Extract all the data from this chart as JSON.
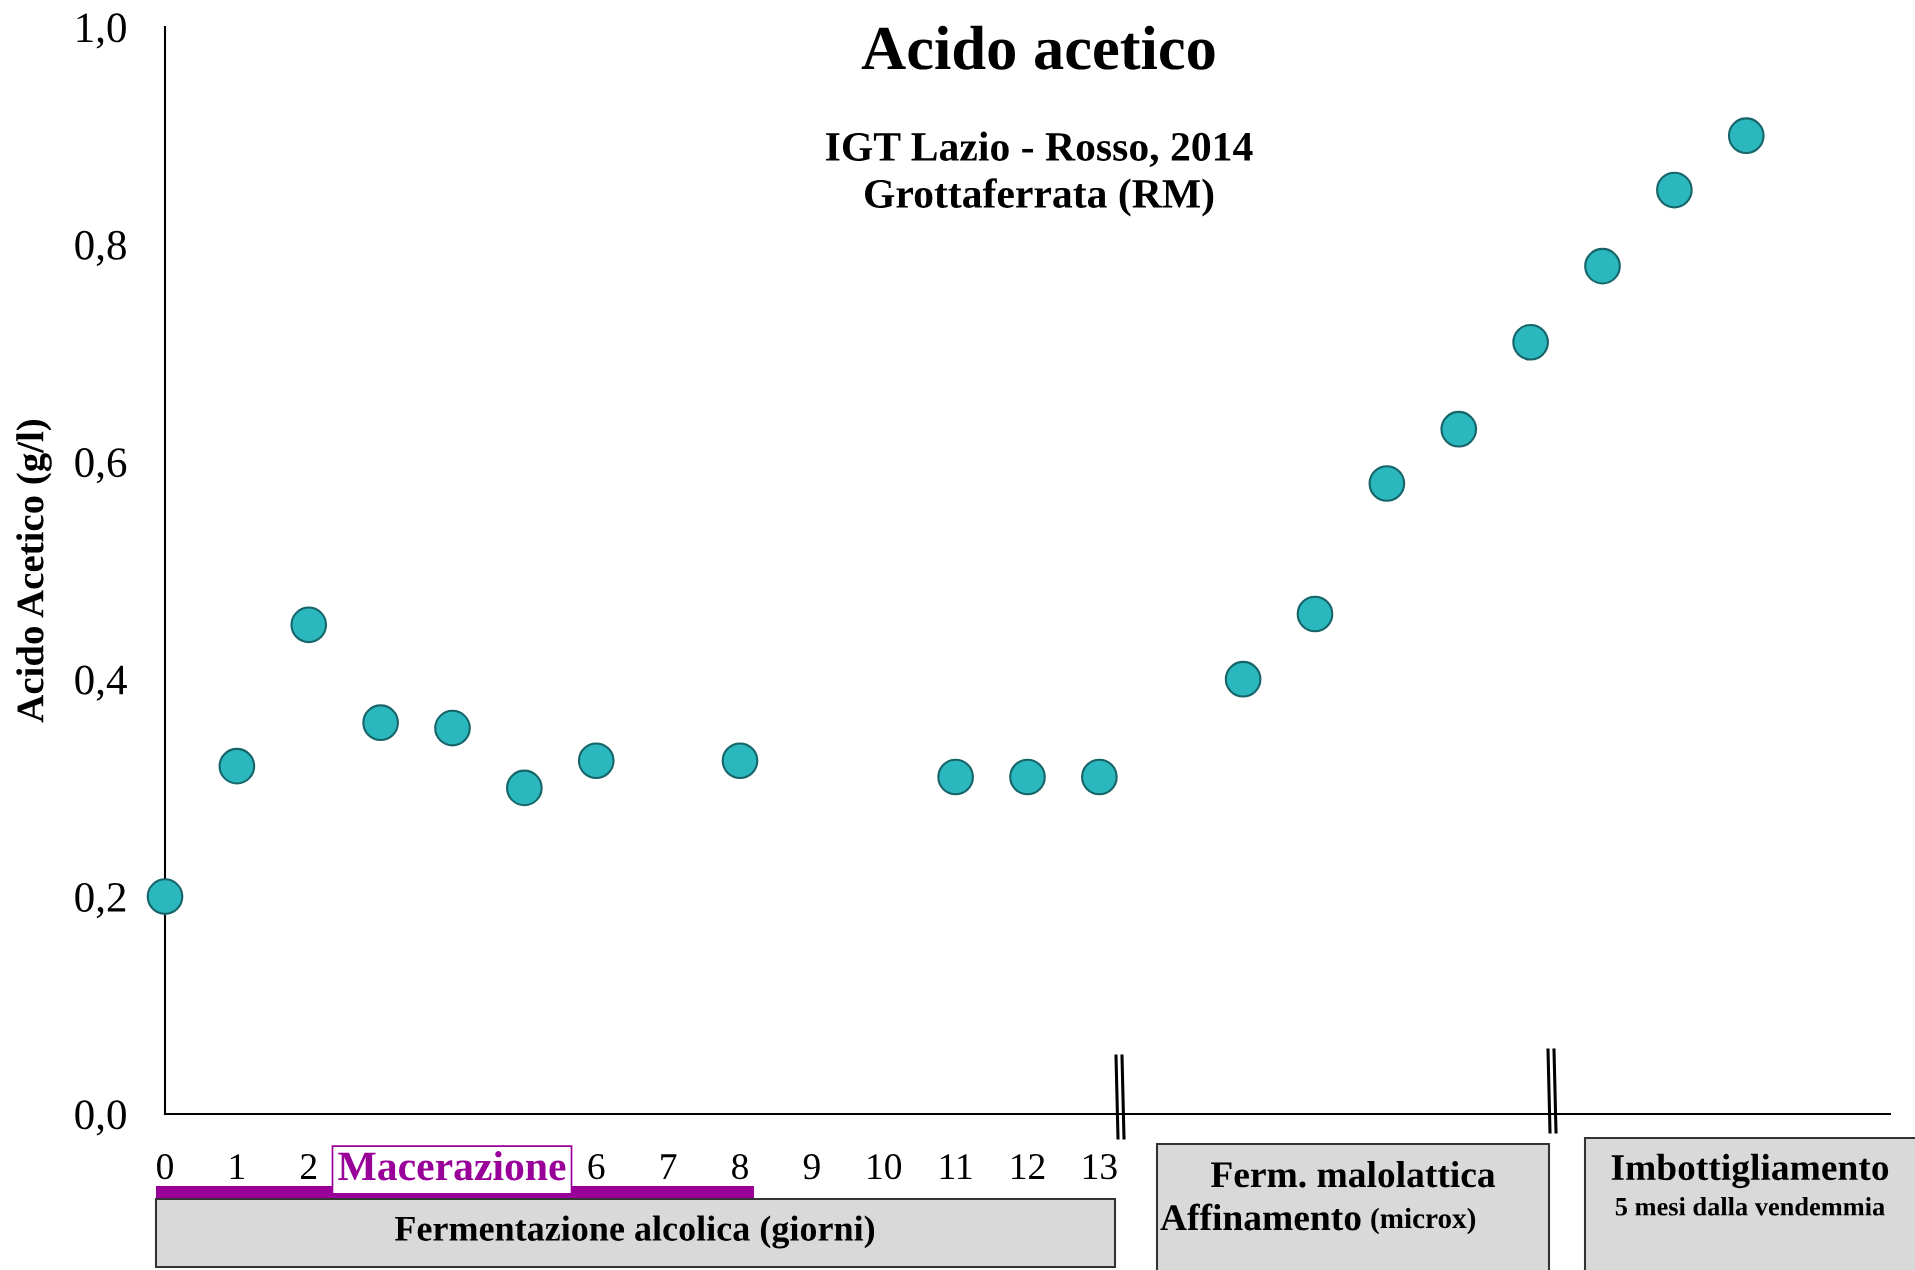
{
  "chart_data": {
    "type": "scatter",
    "title": "Acido acetico",
    "subtitle": "IGT Lazio - Rosso, 2014\nGrottaferrata (RM)",
    "xlabel": "Fermentazione alcolica (giorni)",
    "ylabel": "Acido Acetico (g/l)",
    "categories": [
      "0",
      "1",
      "2",
      null,
      null,
      null,
      "6",
      "7",
      "8",
      "9",
      "10",
      "11",
      "12",
      "13",
      null,
      null,
      null,
      null,
      null,
      null,
      null,
      null,
      null
    ],
    "series": [
      {
        "color": "#2ab7be",
        "values": [
          0.2,
          0.32,
          0.45,
          0.36,
          0.355,
          0.3,
          0.325,
          null,
          0.325,
          null,
          null,
          0.31,
          0.31,
          0.31,
          null,
          0.4,
          0.46,
          0.58,
          0.63,
          0.71,
          0.78,
          0.85,
          0.9
        ]
      }
    ],
    "ylim": [
      0,
      1
    ],
    "yticks": [
      {
        "value": 0,
        "label": "0,0"
      },
      {
        "value": 0.2,
        "label": "0,2"
      },
      {
        "value": 0.4,
        "label": "0,4"
      },
      {
        "value": 0.6,
        "label": "0,6"
      },
      {
        "value": 0.8,
        "label": "0,8"
      },
      {
        "value": 1,
        "label": "1,0"
      }
    ],
    "marker": "circle",
    "annotations": [
      "Macerazione",
      "Ferm. malolattica",
      "Affinamento",
      "(microx)",
      "Imbottigliamento",
      "5 mesi dalla vendemmia"
    ]
  }
}
